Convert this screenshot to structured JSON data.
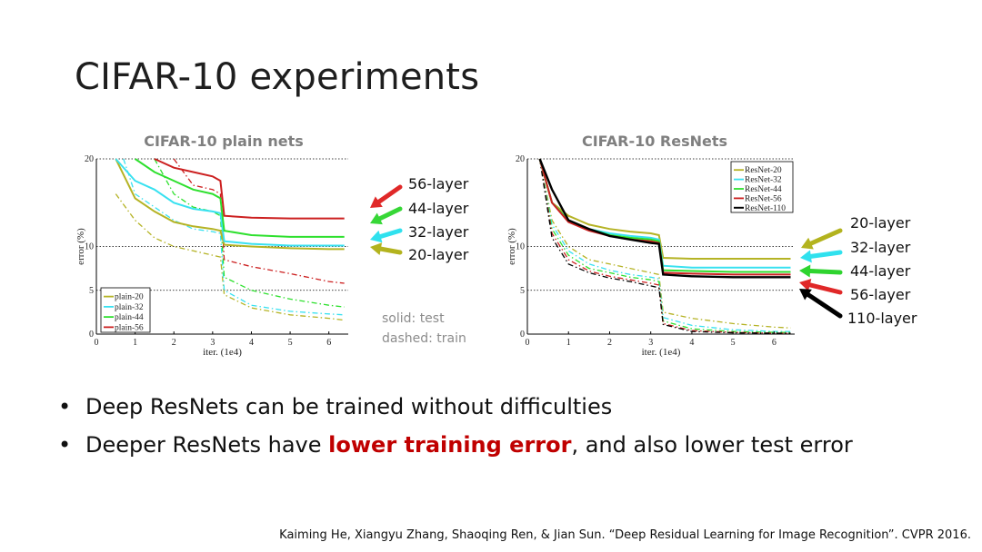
{
  "slide": {
    "title": "CIFAR-10 experiments",
    "bullets": [
      {
        "parts": [
          {
            "text": "Deep ResNets can be trained without difficulties",
            "highlight": false
          }
        ]
      },
      {
        "parts": [
          {
            "text": "Deeper ResNets have ",
            "highlight": false
          },
          {
            "text": "lower training error",
            "highlight": true
          },
          {
            "text": ", and also lower test error",
            "highlight": false
          }
        ]
      }
    ],
    "citation": "Kaiming He, Xiangyu Zhang, Shaoqing Ren, & Jian Sun. “Deep Residual Learning for Image Recognition”. CVPR 2016.",
    "note": {
      "solid": "solid: test",
      "dashed": "dashed: train"
    },
    "highlight_color": "#c00000"
  },
  "chart_data": [
    {
      "type": "line",
      "title": "CIFAR-10 plain nets",
      "xlabel": "iter. (1e4)",
      "ylabel": "error (%)",
      "xlim": [
        0,
        6.5
      ],
      "ylim": [
        0,
        20
      ],
      "xticks": [
        "0",
        "1",
        "2",
        "3",
        "4",
        "5",
        "6"
      ],
      "yticks": [
        "0",
        "5",
        "10",
        "20"
      ],
      "gridlines_y": [
        5,
        10,
        20
      ],
      "legend_position": "bottom-left",
      "series": [
        {
          "name": "plain-20",
          "color": "#b5b325",
          "test": [
            [
              0.5,
              20
            ],
            [
              1,
              15.5
            ],
            [
              1.5,
              14
            ],
            [
              2,
              12.8
            ],
            [
              2.5,
              12.3
            ],
            [
              3,
              12
            ],
            [
              3.2,
              11.8
            ],
            [
              3.3,
              10.2
            ],
            [
              4,
              10
            ],
            [
              5,
              9.8
            ],
            [
              6,
              9.7
            ],
            [
              6.4,
              9.7
            ]
          ],
          "train": [
            [
              0.5,
              16
            ],
            [
              1,
              13
            ],
            [
              1.5,
              11
            ],
            [
              2,
              10
            ],
            [
              2.5,
              9.5
            ],
            [
              3,
              9
            ],
            [
              3.2,
              8.8
            ],
            [
              3.3,
              4.5
            ],
            [
              4,
              3
            ],
            [
              5,
              2.2
            ],
            [
              6,
              1.8
            ],
            [
              6.4,
              1.6
            ]
          ]
        },
        {
          "name": "plain-32",
          "color": "#38e1f0",
          "test": [
            [
              0.5,
              20
            ],
            [
              1,
              17.5
            ],
            [
              1.5,
              16.5
            ],
            [
              2,
              15
            ],
            [
              2.5,
              14.3
            ],
            [
              3,
              14
            ],
            [
              3.2,
              13.8
            ],
            [
              3.3,
              10.6
            ],
            [
              4,
              10.3
            ],
            [
              5,
              10.1
            ],
            [
              6,
              10.1
            ],
            [
              6.4,
              10.1
            ]
          ],
          "train": [
            [
              0.7,
              20
            ],
            [
              1,
              16
            ],
            [
              1.5,
              14.5
            ],
            [
              2,
              13
            ],
            [
              2.5,
              12
            ],
            [
              3,
              11.7
            ],
            [
              3.2,
              11.5
            ],
            [
              3.3,
              5
            ],
            [
              4,
              3.3
            ],
            [
              5,
              2.6
            ],
            [
              6,
              2.3
            ],
            [
              6.4,
              2.2
            ]
          ]
        },
        {
          "name": "plain-44",
          "color": "#2ee02e",
          "test": [
            [
              1,
              20
            ],
            [
              1.5,
              18.5
            ],
            [
              2,
              17.5
            ],
            [
              2.5,
              16.5
            ],
            [
              3,
              16
            ],
            [
              3.2,
              15.5
            ],
            [
              3.3,
              11.8
            ],
            [
              4,
              11.3
            ],
            [
              5,
              11.1
            ],
            [
              6,
              11.1
            ],
            [
              6.4,
              11.1
            ]
          ],
          "train": [
            [
              1.5,
              20
            ],
            [
              2,
              16
            ],
            [
              2.5,
              14.5
            ],
            [
              3,
              14
            ],
            [
              3.2,
              13.5
            ],
            [
              3.3,
              6.5
            ],
            [
              4,
              5
            ],
            [
              5,
              4
            ],
            [
              6,
              3.3
            ],
            [
              6.4,
              3.1
            ]
          ]
        },
        {
          "name": "plain-56",
          "color": "#cc2020",
          "test": [
            [
              1.5,
              20
            ],
            [
              2,
              19
            ],
            [
              2.5,
              18.5
            ],
            [
              3,
              18
            ],
            [
              3.2,
              17.5
            ],
            [
              3.3,
              13.5
            ],
            [
              4,
              13.3
            ],
            [
              5,
              13.2
            ],
            [
              6,
              13.2
            ],
            [
              6.4,
              13.2
            ]
          ],
          "train": [
            [
              2,
              20
            ],
            [
              2.5,
              17
            ],
            [
              3,
              16.5
            ],
            [
              3.2,
              16
            ],
            [
              3.3,
              8.5
            ],
            [
              4,
              7.7
            ],
            [
              5,
              6.9
            ],
            [
              6,
              6
            ],
            [
              6.4,
              5.8
            ]
          ]
        }
      ],
      "callouts": [
        {
          "label": "56-layer",
          "color": "#e02828"
        },
        {
          "label": "44-layer",
          "color": "#37d737"
        },
        {
          "label": "32-layer",
          "color": "#30e1ee"
        },
        {
          "label": "20-layer",
          "color": "#b3b31e"
        }
      ]
    },
    {
      "type": "line",
      "title": "CIFAR-10 ResNets",
      "xlabel": "iter. (1e4)",
      "ylabel": "error (%)",
      "xlim": [
        0,
        6.5
      ],
      "ylim": [
        0,
        20
      ],
      "xticks": [
        "0",
        "1",
        "2",
        "3",
        "4",
        "5",
        "6"
      ],
      "yticks": [
        "0",
        "5",
        "10",
        "20"
      ],
      "gridlines_y": [
        5,
        10,
        20
      ],
      "legend_position": "top-right",
      "series": [
        {
          "name": "ResNet-20",
          "color": "#b5b325",
          "test": [
            [
              0.3,
              20
            ],
            [
              0.6,
              15
            ],
            [
              1,
              13.5
            ],
            [
              1.5,
              12.5
            ],
            [
              2,
              12
            ],
            [
              2.5,
              11.7
            ],
            [
              3,
              11.5
            ],
            [
              3.2,
              11.3
            ],
            [
              3.3,
              8.7
            ],
            [
              4,
              8.6
            ],
            [
              5,
              8.6
            ],
            [
              6,
              8.6
            ],
            [
              6.4,
              8.6
            ]
          ],
          "train": [
            [
              0.3,
              20
            ],
            [
              0.6,
              13
            ],
            [
              1,
              10
            ],
            [
              1.5,
              8.5
            ],
            [
              2,
              8
            ],
            [
              2.5,
              7.5
            ],
            [
              3,
              7
            ],
            [
              3.2,
              6.8
            ],
            [
              3.3,
              2.5
            ],
            [
              4,
              1.8
            ],
            [
              5,
              1.2
            ],
            [
              6,
              0.8
            ],
            [
              6.4,
              0.7
            ]
          ]
        },
        {
          "name": "ResNet-32",
          "color": "#38e1f0",
          "test": [
            [
              0.3,
              20
            ],
            [
              0.6,
              15
            ],
            [
              1,
              13
            ],
            [
              1.5,
              12
            ],
            [
              2,
              11.5
            ],
            [
              2.5,
              11.2
            ],
            [
              3,
              11
            ],
            [
              3.2,
              10.8
            ],
            [
              3.3,
              7.8
            ],
            [
              4,
              7.6
            ],
            [
              5,
              7.6
            ],
            [
              6,
              7.6
            ],
            [
              6.4,
              7.6
            ]
          ],
          "train": [
            [
              0.3,
              20
            ],
            [
              0.6,
              12.5
            ],
            [
              1,
              9.5
            ],
            [
              1.5,
              8
            ],
            [
              2,
              7.3
            ],
            [
              2.5,
              6.8
            ],
            [
              3,
              6.5
            ],
            [
              3.2,
              6.3
            ],
            [
              3.3,
              1.9
            ],
            [
              4,
              1
            ],
            [
              5,
              0.5
            ],
            [
              6,
              0.3
            ],
            [
              6.4,
              0.3
            ]
          ]
        },
        {
          "name": "ResNet-44",
          "color": "#2ee02e",
          "test": [
            [
              0.3,
              20
            ],
            [
              0.6,
              15
            ],
            [
              1,
              13
            ],
            [
              1.5,
              12
            ],
            [
              2,
              11.3
            ],
            [
              2.5,
              11
            ],
            [
              3,
              10.8
            ],
            [
              3.2,
              10.6
            ],
            [
              3.3,
              7.3
            ],
            [
              4,
              7.2
            ],
            [
              5,
              7.1
            ],
            [
              6,
              7.1
            ],
            [
              6.4,
              7.1
            ]
          ],
          "train": [
            [
              0.3,
              20
            ],
            [
              0.6,
              12
            ],
            [
              1,
              9
            ],
            [
              1.5,
              7.5
            ],
            [
              2,
              7
            ],
            [
              2.5,
              6.5
            ],
            [
              3,
              6.2
            ],
            [
              3.2,
              6
            ],
            [
              3.3,
              1.5
            ],
            [
              4,
              0.6
            ],
            [
              5,
              0.3
            ],
            [
              6,
              0.2
            ],
            [
              6.4,
              0.2
            ]
          ]
        },
        {
          "name": "ResNet-56",
          "color": "#cc2020",
          "test": [
            [
              0.3,
              20
            ],
            [
              0.6,
              15
            ],
            [
              1,
              12.8
            ],
            [
              1.5,
              11.8
            ],
            [
              2,
              11.2
            ],
            [
              2.5,
              10.8
            ],
            [
              3,
              10.6
            ],
            [
              3.2,
              10.4
            ],
            [
              3.3,
              7
            ],
            [
              4,
              6.9
            ],
            [
              5,
              6.8
            ],
            [
              6,
              6.8
            ],
            [
              6.4,
              6.8
            ]
          ],
          "train": [
            [
              0.3,
              20
            ],
            [
              0.6,
              11.5
            ],
            [
              1,
              8.5
            ],
            [
              1.5,
              7.2
            ],
            [
              2,
              6.6
            ],
            [
              2.5,
              6.2
            ],
            [
              3,
              5.8
            ],
            [
              3.2,
              5.6
            ],
            [
              3.3,
              1.2
            ],
            [
              4,
              0.4
            ],
            [
              5,
              0.2
            ],
            [
              6,
              0.1
            ],
            [
              6.4,
              0.1
            ]
          ]
        },
        {
          "name": "ResNet-110",
          "color": "#000000",
          "test": [
            [
              0.3,
              20
            ],
            [
              0.6,
              16.5
            ],
            [
              1,
              13
            ],
            [
              1.5,
              12
            ],
            [
              2,
              11.2
            ],
            [
              2.5,
              10.8
            ],
            [
              3,
              10.4
            ],
            [
              3.2,
              10.3
            ],
            [
              3.3,
              6.8
            ],
            [
              4,
              6.6
            ],
            [
              5,
              6.5
            ],
            [
              6,
              6.5
            ],
            [
              6.4,
              6.5
            ]
          ],
          "train": [
            [
              0.3,
              20
            ],
            [
              0.6,
              11
            ],
            [
              1,
              8
            ],
            [
              1.5,
              7
            ],
            [
              2,
              6.4
            ],
            [
              2.5,
              6
            ],
            [
              3,
              5.5
            ],
            [
              3.2,
              5.3
            ],
            [
              3.3,
              1.1
            ],
            [
              4,
              0.3
            ],
            [
              5,
              0.15
            ],
            [
              6,
              0.1
            ],
            [
              6.4,
              0.1
            ]
          ]
        }
      ],
      "callouts": [
        {
          "label": "20-layer",
          "color": "#b3b31e"
        },
        {
          "label": "32-layer",
          "color": "#30e1ee"
        },
        {
          "label": "44-layer",
          "color": "#2fd42f"
        },
        {
          "label": "56-layer",
          "color": "#e02828"
        },
        {
          "label": "110-layer",
          "color": "#000000"
        }
      ]
    }
  ]
}
